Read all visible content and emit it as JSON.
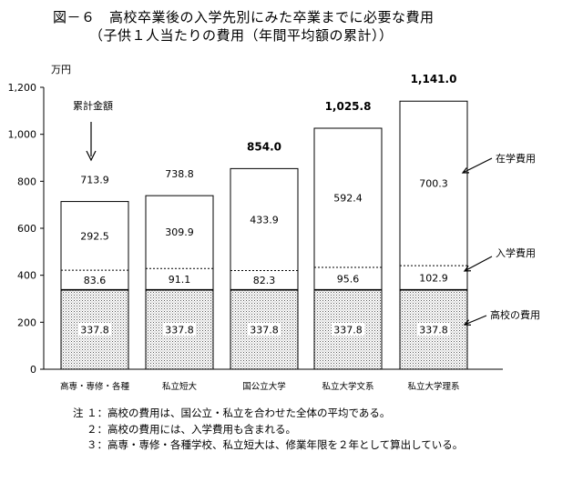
{
  "title": {
    "line1": "図－６　高校卒業後の入学先別にみた卒業までに必要な費用",
    "line2": "（子供１人当たりの費用（年間平均額の累計））"
  },
  "chart_data": {
    "type": "bar",
    "stacked": true,
    "ylabel": "万円",
    "ylim": [
      0,
      1200
    ],
    "yticks": [
      0,
      200,
      400,
      600,
      800,
      1000,
      1200
    ],
    "ytick_labels": [
      "0",
      "200",
      "400",
      "600",
      "800",
      "1,000",
      "1,200"
    ],
    "grid": false,
    "categories": [
      "高専・専修・各種",
      "私立短大",
      "国公立大学",
      "私立大学文系",
      "私立大学理系"
    ],
    "series": [
      {
        "name": "高校の費用",
        "values": [
          337.8,
          337.8,
          337.8,
          337.8,
          337.8
        ],
        "labels": [
          "337.8",
          "337.8",
          "337.8",
          "337.8",
          "337.8"
        ],
        "pattern": "dots"
      },
      {
        "name": "入学費用",
        "values": [
          83.6,
          91.1,
          82.3,
          95.6,
          102.9
        ],
        "labels": [
          "83.6",
          "91.1",
          "82.3",
          "95.6",
          "102.9"
        ],
        "pattern": "white"
      },
      {
        "name": "在学費用",
        "values": [
          292.5,
          309.9,
          433.9,
          592.4,
          700.3
        ],
        "labels": [
          "292.5",
          "309.9",
          "433.9",
          "592.4",
          "700.3"
        ],
        "pattern": "white"
      }
    ],
    "totals": [
      713.9,
      738.8,
      854.0,
      1025.8,
      1141.0
    ],
    "total_labels": [
      "713.9",
      "738.8",
      "854.0",
      "1,025.8",
      "1,141.0"
    ],
    "total_bold": [
      false,
      false,
      true,
      true,
      true
    ],
    "annotations": {
      "cumulative": "累計金額"
    }
  },
  "notes": [
    {
      "num": "注 １：",
      "text": "高校の費用は、国公立・私立を合わせた全体の平均である。"
    },
    {
      "num": "２：",
      "text": "高校の費用には、入学費用も含まれる。"
    },
    {
      "num": "３：",
      "text": "高専・専修・各種学校、私立短大は、修業年限を２年として算出している。"
    }
  ]
}
